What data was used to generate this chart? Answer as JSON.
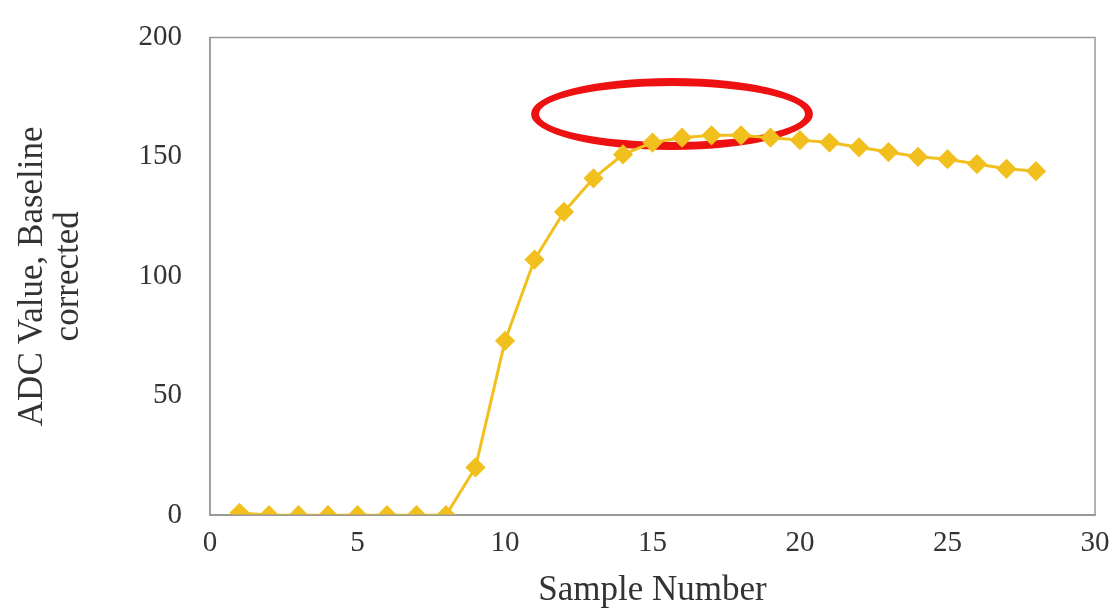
{
  "chart_data": {
    "type": "line",
    "xlabel": "Sample Number",
    "ylabel": "ADC Value, Baseline corrected",
    "x": [
      1,
      2,
      3,
      4,
      5,
      6,
      7,
      8,
      9,
      10,
      11,
      12,
      13,
      14,
      15,
      16,
      17,
      18,
      19,
      20,
      21,
      22,
      23,
      24,
      25,
      26,
      27,
      28
    ],
    "series": [
      {
        "color": "#f2c01e",
        "values": [
          1,
          0,
          0,
          0,
          0,
          0,
          0,
          0,
          20,
          73,
          107,
          127,
          141,
          151,
          156,
          158,
          159,
          159,
          158,
          157,
          156,
          154,
          152,
          150,
          149,
          147,
          145,
          144
        ]
      }
    ],
    "xlim": [
      0,
      30
    ],
    "xticks": [
      0,
      5,
      10,
      15,
      20,
      25,
      30
    ],
    "ylim": [
      0,
      200
    ],
    "yticks": [
      0,
      50,
      100,
      150,
      200
    ],
    "grid": false,
    "legend": false,
    "marker": "diamond",
    "line_style": "solid"
  }
}
